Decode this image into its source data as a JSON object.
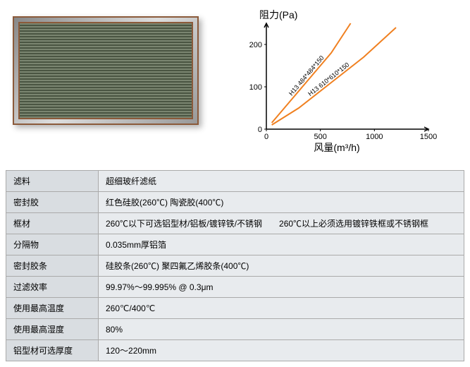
{
  "chart": {
    "type": "line",
    "y_axis_label": "阻力(Pa)",
    "x_axis_label": "风量(m³/h)",
    "x_ticks": [
      0,
      500,
      1000,
      1500
    ],
    "y_ticks": [
      0,
      100,
      200
    ],
    "xlim": [
      0,
      1500
    ],
    "ylim": [
      0,
      250
    ],
    "axis_color": "#000000",
    "background_color": "#ffffff",
    "series": [
      {
        "label": "H13 484*484*150",
        "color": "#f08020",
        "width": 2,
        "points": [
          [
            50,
            15
          ],
          [
            200,
            60
          ],
          [
            400,
            120
          ],
          [
            600,
            180
          ],
          [
            780,
            250
          ]
        ]
      },
      {
        "label": "H13 610*610*150",
        "color": "#f08020",
        "width": 2,
        "points": [
          [
            50,
            10
          ],
          [
            300,
            50
          ],
          [
            600,
            110
          ],
          [
            900,
            170
          ],
          [
            1200,
            240
          ]
        ]
      }
    ]
  },
  "specs": {
    "rows": [
      {
        "k": "滤料",
        "v": "超细玻纤滤纸"
      },
      {
        "k": "密封胶",
        "v": "红色硅胶(260℃) 陶瓷胶(400℃)"
      },
      {
        "k": "框材",
        "v": "260℃以下可选铝型材/铝板/镀锌铁/不锈钢　　260℃以上必须选用镀锌铁框或不锈钢框"
      },
      {
        "k": "分隔物",
        "v": "0.035mm厚铝箔"
      },
      {
        "k": "密封胶条",
        "v": "硅胶条(260℃) 聚四氟乙烯胶条(400℃)"
      },
      {
        "k": "过滤效率",
        "v": "99.97%～99.995% @ 0.3μm"
      },
      {
        "k": "使用最高温度",
        "v": "260℃/400℃"
      },
      {
        "k": "使用最高湿度",
        "v": "80%"
      },
      {
        "k": "铝型材可选厚度",
        "v": "120～220mm"
      }
    ]
  }
}
